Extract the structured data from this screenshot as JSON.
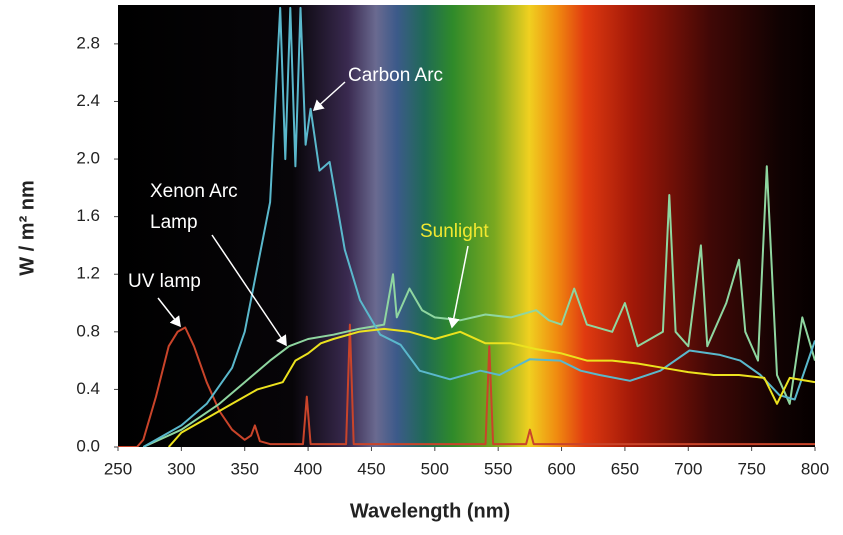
{
  "chart_data": {
    "type": "line",
    "xlabel": "Wavelength (nm)",
    "ylabel": "W / m² nm",
    "xlim": [
      250,
      800
    ],
    "xticks": [
      250,
      300,
      350,
      400,
      450,
      500,
      550,
      600,
      650,
      700,
      750,
      800
    ],
    "ylim": [
      0,
      3.07
    ],
    "yticks": [
      {
        "value": 0,
        "label": "0.0"
      },
      0.4,
      0.8,
      1.2,
      1.6,
      {
        "value": 2,
        "label": "2.0"
      },
      2.4,
      2.8
    ],
    "series": [
      {
        "name": "UV lamp",
        "color": "#c9442a",
        "x": [
          250,
          265,
          270,
          280,
          290,
          297,
          303,
          310,
          320,
          330,
          340,
          350,
          355,
          358,
          362,
          370,
          396,
          399,
          402,
          430,
          433,
          436,
          540,
          543,
          546,
          572,
          575,
          578,
          800
        ],
        "values": [
          0,
          0,
          0.05,
          0.35,
          0.7,
          0.8,
          0.83,
          0.7,
          0.45,
          0.25,
          0.12,
          0.05,
          0.08,
          0.15,
          0.04,
          0.02,
          0.02,
          0.35,
          0.02,
          0.02,
          0.85,
          0.02,
          0.02,
          0.7,
          0.02,
          0.02,
          0.12,
          0.02,
          0.02
        ]
      },
      {
        "name": "Xenon Arc Lamp",
        "color": "#8fd6a0",
        "x": [
          270,
          300,
          330,
          350,
          370,
          385,
          400,
          420,
          440,
          460,
          467,
          470,
          480,
          490,
          500,
          520,
          540,
          560,
          580,
          590,
          600,
          610,
          620,
          640,
          650,
          660,
          670,
          680,
          685,
          690,
          700,
          710,
          715,
          730,
          740,
          745,
          755,
          762,
          770,
          780,
          790,
          800
        ],
        "values": [
          0,
          0.12,
          0.3,
          0.45,
          0.6,
          0.7,
          0.75,
          0.78,
          0.82,
          0.85,
          1.2,
          0.9,
          1.1,
          0.95,
          0.9,
          0.88,
          0.92,
          0.9,
          0.95,
          0.88,
          0.85,
          1.1,
          0.85,
          0.8,
          1.0,
          0.7,
          0.75,
          0.8,
          1.75,
          0.8,
          0.7,
          1.4,
          0.7,
          1.0,
          1.3,
          0.8,
          0.6,
          1.95,
          0.5,
          0.3,
          0.9,
          0.6
        ]
      },
      {
        "name": "Carbon Arc",
        "color": "#5ab8cc",
        "x": [
          270,
          300,
          320,
          340,
          350,
          370,
          378,
          382,
          386,
          390,
          394,
          398,
          402,
          409,
          417,
          429,
          441,
          457,
          473,
          488,
          512,
          536,
          551,
          575,
          599,
          615,
          630,
          654,
          678,
          701,
          725,
          741,
          757,
          772,
          784,
          800
        ],
        "values": [
          0,
          0.15,
          0.3,
          0.55,
          0.8,
          1.7,
          3.05,
          2.0,
          3.05,
          1.95,
          3.05,
          2.1,
          2.35,
          1.92,
          1.98,
          1.37,
          1.02,
          0.78,
          0.71,
          0.53,
          0.47,
          0.53,
          0.5,
          0.61,
          0.6,
          0.53,
          0.5,
          0.46,
          0.53,
          0.67,
          0.64,
          0.6,
          0.5,
          0.36,
          0.33,
          0.74
        ]
      },
      {
        "name": "Sunlight",
        "color": "#ece21e",
        "x": [
          290,
          300,
          320,
          340,
          360,
          380,
          390,
          400,
          410,
          420,
          440,
          460,
          480,
          500,
          520,
          540,
          560,
          580,
          600,
          620,
          640,
          660,
          680,
          700,
          720,
          740,
          760,
          770,
          780,
          800
        ],
        "values": [
          0,
          0.1,
          0.2,
          0.3,
          0.4,
          0.45,
          0.6,
          0.65,
          0.72,
          0.75,
          0.8,
          0.82,
          0.8,
          0.75,
          0.8,
          0.72,
          0.72,
          0.68,
          0.65,
          0.6,
          0.6,
          0.58,
          0.55,
          0.52,
          0.5,
          0.5,
          0.48,
          0.3,
          0.48,
          0.45
        ]
      }
    ]
  }
}
